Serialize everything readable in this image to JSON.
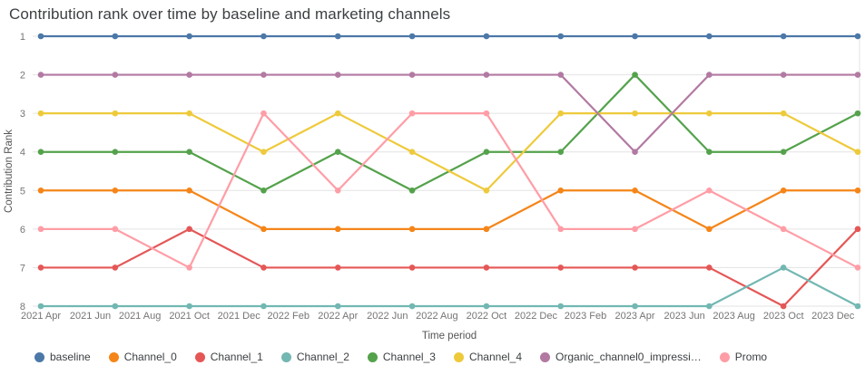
{
  "header": {
    "title": "Contribution rank over time by baseline and marketing channels"
  },
  "chart_data": {
    "type": "line",
    "title": "Contribution rank over time by baseline and marketing channels",
    "xlabel": "Time period",
    "ylabel": "Contribution Rank",
    "ylim": [
      1,
      8
    ],
    "y_ticks": [
      1,
      2,
      3,
      4,
      5,
      6,
      7,
      8
    ],
    "y_axis_note": "rank 1 rendered at top (inverted axis)",
    "grid": "horizontal",
    "legend_position": "bottom",
    "x_tick_labels": [
      "2021 Apr",
      "2021 Jun",
      "2021 Aug",
      "2021 Oct",
      "2021 Dec",
      "2022 Feb",
      "2022 Apr",
      "2022 Jun",
      "2022 Aug",
      "2022 Oct",
      "2022 Dec",
      "2023 Feb",
      "2023 Apr",
      "2023 Jun",
      "2023 Aug",
      "2023 Oct",
      "2023 Dec"
    ],
    "x_tick_month_offsets": [
      0,
      2,
      4,
      6,
      8,
      10,
      12,
      14,
      16,
      18,
      20,
      22,
      24,
      26,
      28,
      30,
      32
    ],
    "x_domain_months": [
      0,
      33
    ],
    "x_month_offsets": [
      0,
      3,
      6,
      9,
      12,
      15,
      18,
      21,
      24,
      27,
      30,
      33
    ],
    "series": [
      {
        "name": "baseline",
        "legend_label": "baseline",
        "color": "#4c78a8",
        "values": [
          1,
          1,
          1,
          1,
          1,
          1,
          1,
          1,
          1,
          1,
          1,
          1
        ]
      },
      {
        "name": "Channel_0",
        "legend_label": "Channel_0",
        "color": "#f58518",
        "values": [
          5,
          5,
          5,
          6,
          6,
          6,
          6,
          5,
          5,
          6,
          5,
          5
        ]
      },
      {
        "name": "Channel_1",
        "legend_label": "Channel_1",
        "color": "#e45756",
        "values": [
          7,
          7,
          6,
          7,
          7,
          7,
          7,
          7,
          7,
          7,
          8,
          6
        ]
      },
      {
        "name": "Channel_2",
        "legend_label": "Channel_2",
        "color": "#72b7b2",
        "values": [
          8,
          8,
          8,
          8,
          8,
          8,
          8,
          8,
          8,
          8,
          7,
          8
        ]
      },
      {
        "name": "Channel_3",
        "legend_label": "Channel_3",
        "color": "#54a24b",
        "values": [
          4,
          4,
          4,
          5,
          4,
          5,
          4,
          4,
          2,
          4,
          4,
          3
        ]
      },
      {
        "name": "Channel_4",
        "legend_label": "Channel_4",
        "color": "#eeca3b",
        "values": [
          3,
          3,
          3,
          4,
          3,
          4,
          5,
          3,
          3,
          3,
          3,
          4
        ]
      },
      {
        "name": "Organic_channel0_impressi…",
        "legend_label": "Organic_channel0_impressi…",
        "color": "#b279a2",
        "values": [
          2,
          2,
          2,
          2,
          2,
          2,
          2,
          2,
          4,
          2,
          2,
          2
        ]
      },
      {
        "name": "Promo",
        "legend_label": "Promo",
        "color": "#ff9da6",
        "values": [
          6,
          6,
          7,
          3,
          5,
          3,
          3,
          6,
          6,
          5,
          6,
          7
        ]
      }
    ]
  },
  "style": {
    "grid_color": "#e3e3e3",
    "tick_label_color": "#757575",
    "axis_title_color": "#545454"
  }
}
